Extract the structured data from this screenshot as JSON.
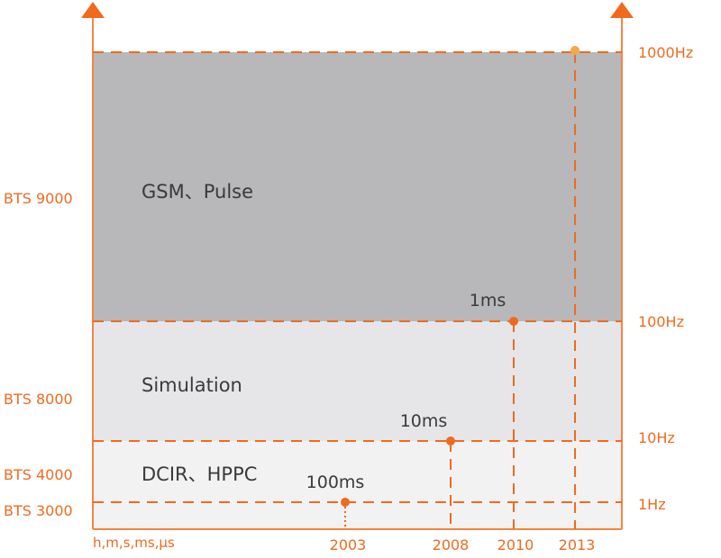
{
  "left_labels": [
    "BTS 9000",
    "BTS 8000",
    "BTS 4000",
    "BTS 3000"
  ],
  "right_labels": [
    "1000Hz",
    "100Hz",
    "10Hz",
    "1Hz"
  ],
  "x_axis_label": "h,m,s,ms,μs",
  "x_labels": [
    "2003",
    "2008",
    "2010",
    "2013"
  ],
  "bands": [
    {
      "label": "GSM、Pulse"
    },
    {
      "label": "Simulation"
    },
    {
      "label": "DCIR、HPPC"
    }
  ],
  "markers": [
    {
      "label": "1ms"
    },
    {
      "label": "10ms"
    },
    {
      "label": "100ms"
    }
  ]
}
